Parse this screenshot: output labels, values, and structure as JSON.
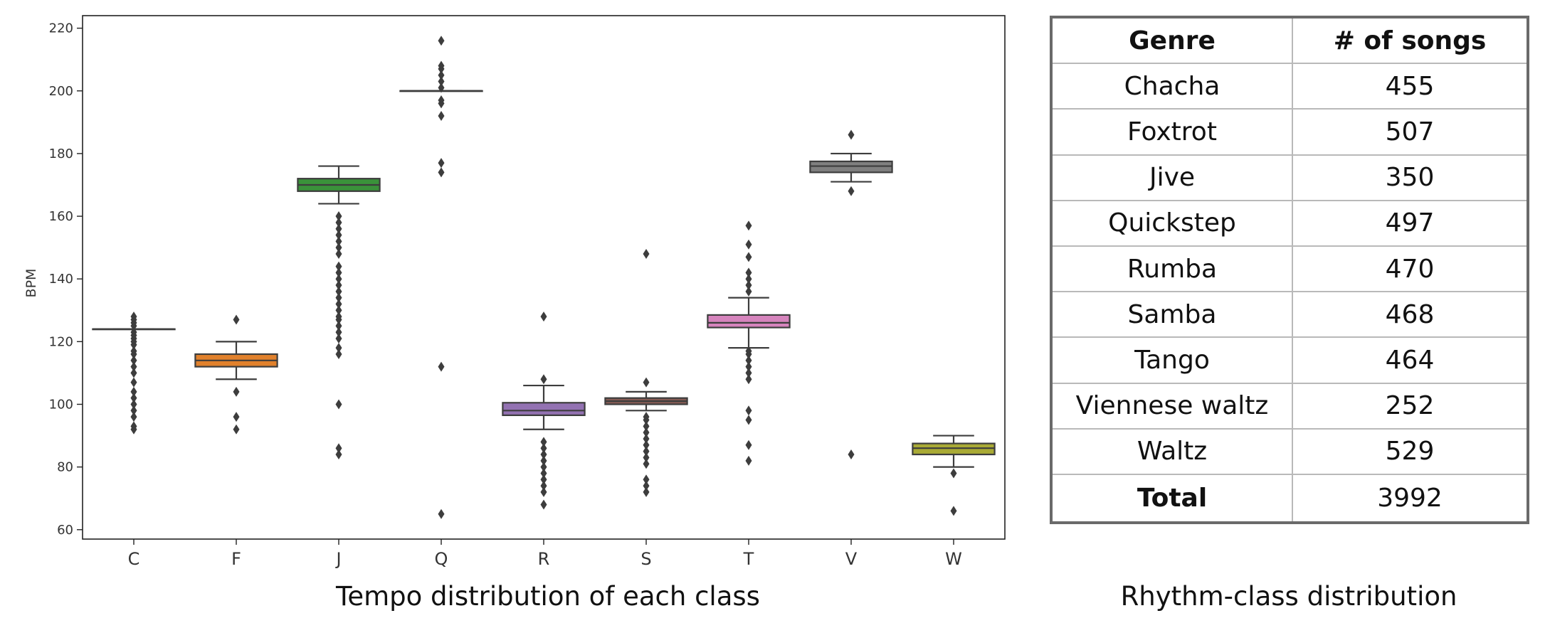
{
  "chart_data": [
    {
      "type": "box",
      "ylabel": "BPM",
      "ylim": [
        57,
        224
      ],
      "yticks": [
        60,
        80,
        100,
        120,
        140,
        160,
        180,
        200,
        220
      ],
      "categories": [
        "C",
        "F",
        "J",
        "Q",
        "R",
        "S",
        "T",
        "V",
        "W"
      ],
      "boxes": [
        {
          "q1": 124,
          "median": 124,
          "q3": 124,
          "whisker_low": 124,
          "whisker_high": 124,
          "color": "#3274a1",
          "outliers": [
            92,
            93,
            96,
            98,
            100,
            102,
            104,
            107,
            110,
            112,
            114,
            116,
            117,
            119,
            120,
            121,
            122,
            123,
            125,
            126,
            127,
            128
          ]
        },
        {
          "q1": 112,
          "median": 114,
          "q3": 116,
          "whisker_low": 108,
          "whisker_high": 120,
          "color": "#e1812c",
          "outliers": [
            92,
            96,
            104,
            127
          ]
        },
        {
          "q1": 168,
          "median": 170,
          "q3": 172,
          "whisker_low": 164,
          "whisker_high": 176,
          "color": "#3a923a",
          "outliers": [
            84,
            86,
            100,
            116,
            118,
            121,
            123,
            125,
            127,
            128,
            130,
            132,
            134,
            136,
            138,
            140,
            142,
            144,
            148,
            150,
            152,
            154,
            156,
            158,
            160
          ]
        },
        {
          "q1": 200,
          "median": 200,
          "q3": 200,
          "whisker_low": 200,
          "whisker_high": 200,
          "color": "#c03d3e",
          "outliers": [
            65,
            112,
            174,
            177,
            192,
            196,
            197,
            201,
            203,
            205,
            207,
            208,
            216
          ]
        },
        {
          "q1": 96.5,
          "median": 98,
          "q3": 100.5,
          "whisker_low": 92,
          "whisker_high": 106,
          "color": "#9372b2",
          "outliers": [
            68,
            72,
            74,
            76,
            78,
            80,
            82,
            84,
            86,
            88,
            108,
            128
          ]
        },
        {
          "q1": 100,
          "median": 101,
          "q3": 102,
          "whisker_low": 98,
          "whisker_high": 104,
          "color": "#845b53",
          "outliers": [
            72,
            74,
            76,
            81,
            83,
            85,
            87,
            89,
            91,
            93,
            95,
            96,
            107,
            148
          ]
        },
        {
          "q1": 124.5,
          "median": 126,
          "q3": 128.5,
          "whisker_low": 118,
          "whisker_high": 134,
          "color": "#d684bd",
          "outliers": [
            82,
            87,
            95,
            98,
            108,
            110,
            112,
            114,
            116,
            117,
            136,
            138,
            140,
            142,
            147,
            151,
            157
          ]
        },
        {
          "q1": 174,
          "median": 176,
          "q3": 177.5,
          "whisker_low": 171,
          "whisker_high": 180,
          "color": "#7f7f7f",
          "outliers": [
            84,
            168,
            186
          ]
        },
        {
          "q1": 84,
          "median": 86,
          "q3": 87.5,
          "whisker_low": 80,
          "whisker_high": 90,
          "color": "#a9aa35",
          "outliers": [
            66,
            78
          ]
        }
      ]
    },
    {
      "type": "table",
      "columns": [
        "Genre",
        "# of songs"
      ],
      "rows": [
        [
          "Chacha",
          "455"
        ],
        [
          "Foxtrot",
          "507"
        ],
        [
          "Jive",
          "350"
        ],
        [
          "Quickstep",
          "497"
        ],
        [
          "Rumba",
          "470"
        ],
        [
          "Samba",
          "468"
        ],
        [
          "Tango",
          "464"
        ],
        [
          "Viennese waltz",
          "252"
        ],
        [
          "Waltz",
          "529"
        ],
        [
          "Total",
          "3992"
        ]
      ]
    }
  ],
  "captions": {
    "left": "Tempo distribution of each class",
    "right": "Rhythm-class distribution"
  }
}
